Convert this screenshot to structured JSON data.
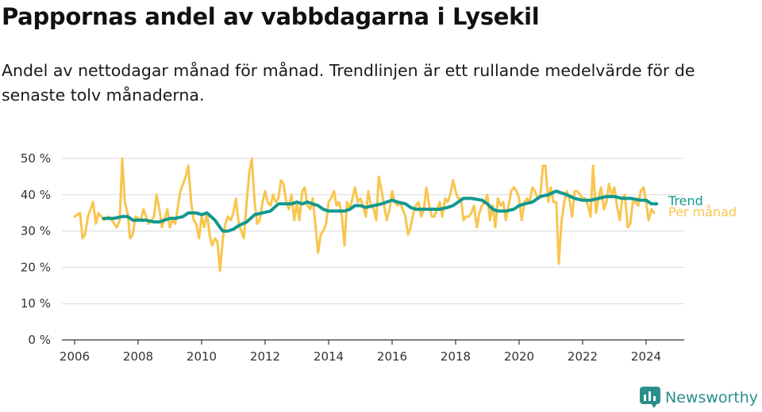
{
  "header": {
    "title": "Pappornas andel av vabbdagarna i Lysekil",
    "subtitle": "Andel av nettodagar månad för månad. Trendlinjen är ett rullande medelvärde för de senaste tolv månaderna."
  },
  "brand": {
    "name": "Newsworthy",
    "icon": "newsworthy-logo-icon",
    "color": "#2b8f8a"
  },
  "chart_data": {
    "type": "line",
    "xlim": [
      2005.6,
      2025.2
    ],
    "ylim": [
      0,
      50
    ],
    "ytick_values": [
      0,
      10,
      20,
      30,
      40,
      50
    ],
    "ytick_labels": [
      "0 %",
      "10 %",
      "20 %",
      "30 %",
      "40 %",
      "50 %"
    ],
    "xtick_values": [
      2006,
      2008,
      2010,
      2012,
      2014,
      2016,
      2018,
      2020,
      2022,
      2024
    ],
    "xtick_labels": [
      "2006",
      "2008",
      "2010",
      "2012",
      "2014",
      "2016",
      "2018",
      "2020",
      "2022",
      "2024"
    ],
    "grid": "horizontal",
    "legend_placement": "right-end",
    "series": [
      {
        "name": "Per månad",
        "color": "#f9c54e",
        "points": [
          [
            2006.0,
            34
          ],
          [
            2006.17,
            35
          ],
          [
            2006.25,
            28
          ],
          [
            2006.33,
            29
          ],
          [
            2006.42,
            34
          ],
          [
            2006.58,
            38
          ],
          [
            2006.67,
            32
          ],
          [
            2006.75,
            35
          ],
          [
            2006.92,
            33
          ],
          [
            2007.08,
            34
          ],
          [
            2007.17,
            33
          ],
          [
            2007.33,
            31
          ],
          [
            2007.42,
            33
          ],
          [
            2007.5,
            50
          ],
          [
            2007.58,
            38
          ],
          [
            2007.67,
            35
          ],
          [
            2007.75,
            28
          ],
          [
            2007.83,
            29
          ],
          [
            2007.92,
            34
          ],
          [
            2008.08,
            33
          ],
          [
            2008.17,
            36
          ],
          [
            2008.33,
            32
          ],
          [
            2008.42,
            33
          ],
          [
            2008.5,
            34
          ],
          [
            2008.58,
            40
          ],
          [
            2008.67,
            36
          ],
          [
            2008.75,
            31
          ],
          [
            2008.92,
            36
          ],
          [
            2009.0,
            31
          ],
          [
            2009.08,
            33
          ],
          [
            2009.17,
            32
          ],
          [
            2009.33,
            41
          ],
          [
            2009.5,
            45
          ],
          [
            2009.58,
            48
          ],
          [
            2009.67,
            38
          ],
          [
            2009.75,
            33
          ],
          [
            2009.83,
            32
          ],
          [
            2009.92,
            28
          ],
          [
            2010.0,
            34
          ],
          [
            2010.08,
            31
          ],
          [
            2010.17,
            35
          ],
          [
            2010.25,
            29
          ],
          [
            2010.33,
            26
          ],
          [
            2010.42,
            28
          ],
          [
            2010.5,
            27
          ],
          [
            2010.58,
            19
          ],
          [
            2010.67,
            28
          ],
          [
            2010.75,
            32
          ],
          [
            2010.83,
            34
          ],
          [
            2010.92,
            33
          ],
          [
            2011.0,
            35
          ],
          [
            2011.08,
            39
          ],
          [
            2011.17,
            32
          ],
          [
            2011.25,
            30
          ],
          [
            2011.33,
            28
          ],
          [
            2011.42,
            38
          ],
          [
            2011.5,
            46
          ],
          [
            2011.58,
            50
          ],
          [
            2011.67,
            38
          ],
          [
            2011.75,
            32
          ],
          [
            2011.83,
            33
          ],
          [
            2011.92,
            38
          ],
          [
            2012.0,
            41
          ],
          [
            2012.08,
            38
          ],
          [
            2012.17,
            37
          ],
          [
            2012.25,
            40
          ],
          [
            2012.33,
            38
          ],
          [
            2012.42,
            39
          ],
          [
            2012.5,
            44
          ],
          [
            2012.58,
            43
          ],
          [
            2012.67,
            38
          ],
          [
            2012.75,
            36
          ],
          [
            2012.83,
            40
          ],
          [
            2012.92,
            33
          ],
          [
            2013.0,
            38
          ],
          [
            2013.08,
            33
          ],
          [
            2013.17,
            41
          ],
          [
            2013.25,
            42
          ],
          [
            2013.33,
            37
          ],
          [
            2013.42,
            36
          ],
          [
            2013.5,
            39
          ],
          [
            2013.58,
            32
          ],
          [
            2013.67,
            24
          ],
          [
            2013.75,
            29
          ],
          [
            2013.83,
            30
          ],
          [
            2013.92,
            32
          ],
          [
            2014.0,
            38
          ],
          [
            2014.08,
            39
          ],
          [
            2014.17,
            41
          ],
          [
            2014.25,
            37
          ],
          [
            2014.33,
            38
          ],
          [
            2014.42,
            34
          ],
          [
            2014.5,
            26
          ],
          [
            2014.58,
            38
          ],
          [
            2014.67,
            36
          ],
          [
            2014.83,
            42
          ],
          [
            2014.92,
            38
          ],
          [
            2015.0,
            39
          ],
          [
            2015.08,
            37
          ],
          [
            2015.17,
            34
          ],
          [
            2015.25,
            41
          ],
          [
            2015.33,
            37
          ],
          [
            2015.42,
            36
          ],
          [
            2015.5,
            33
          ],
          [
            2015.58,
            45
          ],
          [
            2015.67,
            41
          ],
          [
            2015.75,
            37
          ],
          [
            2015.83,
            33
          ],
          [
            2015.92,
            36
          ],
          [
            2016.0,
            41
          ],
          [
            2016.08,
            38
          ],
          [
            2016.17,
            37
          ],
          [
            2016.25,
            38
          ],
          [
            2016.33,
            36
          ],
          [
            2016.42,
            34
          ],
          [
            2016.5,
            29
          ],
          [
            2016.58,
            31
          ],
          [
            2016.67,
            35
          ],
          [
            2016.75,
            37
          ],
          [
            2016.83,
            38
          ],
          [
            2016.92,
            34
          ],
          [
            2017.0,
            36
          ],
          [
            2017.08,
            42
          ],
          [
            2017.17,
            37
          ],
          [
            2017.25,
            34
          ],
          [
            2017.33,
            34
          ],
          [
            2017.42,
            36
          ],
          [
            2017.5,
            38
          ],
          [
            2017.58,
            34
          ],
          [
            2017.67,
            39
          ],
          [
            2017.75,
            38
          ],
          [
            2017.83,
            40
          ],
          [
            2017.92,
            44
          ],
          [
            2018.0,
            41
          ],
          [
            2018.08,
            39
          ],
          [
            2018.17,
            39
          ],
          [
            2018.25,
            33
          ],
          [
            2018.33,
            34
          ],
          [
            2018.42,
            34
          ],
          [
            2018.5,
            35
          ],
          [
            2018.58,
            37
          ],
          [
            2018.67,
            31
          ],
          [
            2018.75,
            35
          ],
          [
            2018.83,
            37
          ],
          [
            2018.92,
            38
          ],
          [
            2019.0,
            40
          ],
          [
            2019.08,
            33
          ],
          [
            2019.17,
            37
          ],
          [
            2019.25,
            31
          ],
          [
            2019.33,
            39
          ],
          [
            2019.42,
            37
          ],
          [
            2019.5,
            38
          ],
          [
            2019.58,
            33
          ],
          [
            2019.67,
            37
          ],
          [
            2019.75,
            41
          ],
          [
            2019.83,
            42
          ],
          [
            2019.92,
            41
          ],
          [
            2020.0,
            39
          ],
          [
            2020.08,
            33
          ],
          [
            2020.17,
            38
          ],
          [
            2020.25,
            39
          ],
          [
            2020.33,
            38
          ],
          [
            2020.42,
            42
          ],
          [
            2020.5,
            41
          ],
          [
            2020.58,
            39
          ],
          [
            2020.67,
            40
          ],
          [
            2020.75,
            48
          ],
          [
            2020.83,
            48
          ],
          [
            2020.92,
            38
          ],
          [
            2021.0,
            42
          ],
          [
            2021.08,
            38
          ],
          [
            2021.17,
            38
          ],
          [
            2021.25,
            21
          ],
          [
            2021.33,
            32
          ],
          [
            2021.42,
            38
          ],
          [
            2021.5,
            41
          ],
          [
            2021.58,
            39
          ],
          [
            2021.67,
            34
          ],
          [
            2021.75,
            41
          ],
          [
            2021.83,
            41
          ],
          [
            2021.92,
            40
          ],
          [
            2022.0,
            39
          ],
          [
            2022.08,
            39
          ],
          [
            2022.17,
            37
          ],
          [
            2022.25,
            34
          ],
          [
            2022.33,
            48
          ],
          [
            2022.42,
            35
          ],
          [
            2022.5,
            39
          ],
          [
            2022.58,
            42
          ],
          [
            2022.67,
            36
          ],
          [
            2022.75,
            38
          ],
          [
            2022.83,
            43
          ],
          [
            2022.92,
            40
          ],
          [
            2023.0,
            42
          ],
          [
            2023.08,
            37
          ],
          [
            2023.17,
            33
          ],
          [
            2023.25,
            39
          ],
          [
            2023.33,
            40
          ],
          [
            2023.42,
            31
          ],
          [
            2023.5,
            32
          ],
          [
            2023.58,
            38
          ],
          [
            2023.67,
            38
          ],
          [
            2023.75,
            37
          ],
          [
            2023.83,
            41
          ],
          [
            2023.92,
            42
          ],
          [
            2024.0,
            38
          ],
          [
            2024.08,
            33
          ],
          [
            2024.17,
            36
          ],
          [
            2024.25,
            35
          ]
        ]
      },
      {
        "name": "Trend",
        "color": "#11998e",
        "points": [
          [
            2006.92,
            33.5
          ],
          [
            2007.25,
            33.5
          ],
          [
            2007.5,
            34
          ],
          [
            2007.67,
            34
          ],
          [
            2007.83,
            33
          ],
          [
            2008.0,
            33
          ],
          [
            2008.25,
            33
          ],
          [
            2008.5,
            32.5
          ],
          [
            2008.67,
            32.5
          ],
          [
            2008.83,
            33
          ],
          [
            2009.0,
            33.5
          ],
          [
            2009.17,
            33.5
          ],
          [
            2009.42,
            34
          ],
          [
            2009.58,
            35
          ],
          [
            2009.83,
            35
          ],
          [
            2010.0,
            34.5
          ],
          [
            2010.17,
            35
          ],
          [
            2010.42,
            33
          ],
          [
            2010.58,
            31
          ],
          [
            2010.67,
            30
          ],
          [
            2010.83,
            30
          ],
          [
            2011.0,
            30.5
          ],
          [
            2011.17,
            31.5
          ],
          [
            2011.42,
            32.5
          ],
          [
            2011.67,
            34.5
          ],
          [
            2011.92,
            35
          ],
          [
            2012.17,
            35.5
          ],
          [
            2012.42,
            37.5
          ],
          [
            2012.67,
            37.5
          ],
          [
            2012.83,
            37.5
          ],
          [
            2013.0,
            38
          ],
          [
            2013.17,
            37.5
          ],
          [
            2013.33,
            38
          ],
          [
            2013.5,
            37.5
          ],
          [
            2013.67,
            37
          ],
          [
            2013.83,
            36
          ],
          [
            2014.0,
            35.5
          ],
          [
            2014.17,
            35.5
          ],
          [
            2014.33,
            35.5
          ],
          [
            2014.5,
            35.5
          ],
          [
            2014.67,
            36
          ],
          [
            2014.83,
            37
          ],
          [
            2015.0,
            37
          ],
          [
            2015.17,
            36.5
          ],
          [
            2015.42,
            37
          ],
          [
            2015.67,
            37.5
          ],
          [
            2015.83,
            38
          ],
          [
            2016.0,
            38.5
          ],
          [
            2016.17,
            38
          ],
          [
            2016.42,
            37.5
          ],
          [
            2016.58,
            36.5
          ],
          [
            2016.75,
            36
          ],
          [
            2017.0,
            36
          ],
          [
            2017.25,
            36
          ],
          [
            2017.5,
            36
          ],
          [
            2017.75,
            36.5
          ],
          [
            2017.92,
            37
          ],
          [
            2018.08,
            38
          ],
          [
            2018.25,
            39
          ],
          [
            2018.5,
            39
          ],
          [
            2018.83,
            38.5
          ],
          [
            2019.0,
            37.5
          ],
          [
            2019.17,
            36
          ],
          [
            2019.33,
            35.5
          ],
          [
            2019.58,
            35.5
          ],
          [
            2019.83,
            36
          ],
          [
            2020.0,
            37
          ],
          [
            2020.17,
            37.5
          ],
          [
            2020.42,
            38
          ],
          [
            2020.67,
            39.5
          ],
          [
            2020.92,
            40
          ],
          [
            2021.17,
            41
          ],
          [
            2021.33,
            40.5
          ],
          [
            2021.5,
            40
          ],
          [
            2021.75,
            39
          ],
          [
            2022.0,
            38.5
          ],
          [
            2022.25,
            38.5
          ],
          [
            2022.5,
            39
          ],
          [
            2022.75,
            39.5
          ],
          [
            2023.0,
            39.5
          ],
          [
            2023.25,
            39
          ],
          [
            2023.5,
            39
          ],
          [
            2023.83,
            38.5
          ],
          [
            2024.0,
            38.5
          ],
          [
            2024.17,
            37.5
          ],
          [
            2024.33,
            37.5
          ]
        ]
      }
    ]
  }
}
